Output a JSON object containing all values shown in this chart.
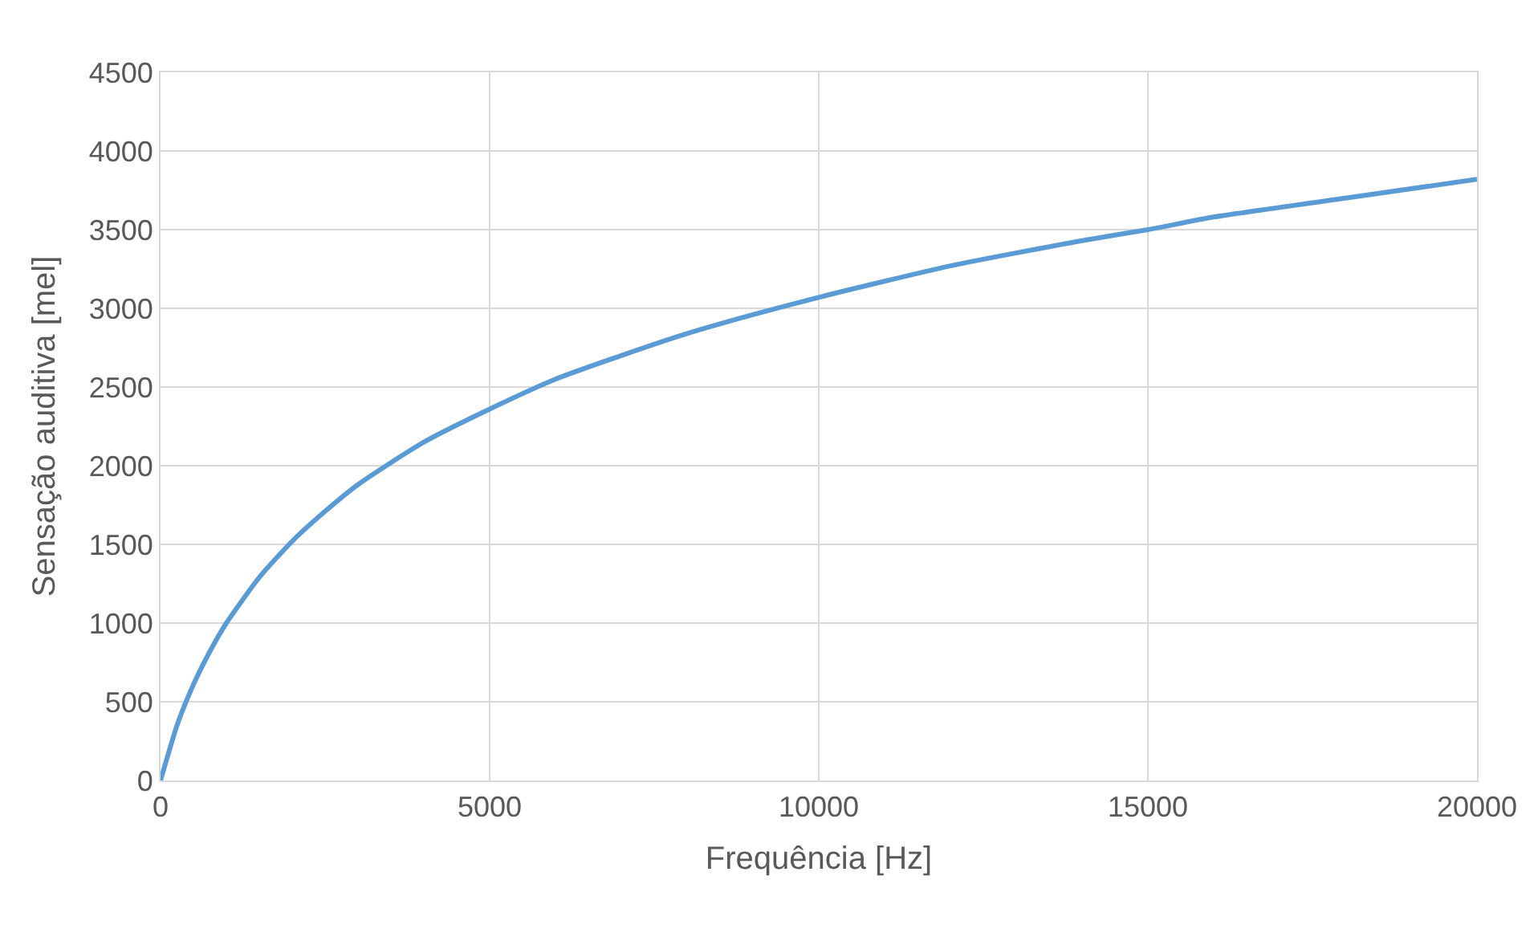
{
  "chart_data": {
    "type": "line",
    "xlabel": "Frequência [Hz]",
    "ylabel": "Sensação auditiva [mel]",
    "x": [
      0,
      250,
      500,
      750,
      1000,
      1500,
      2000,
      2500,
      3000,
      4000,
      5000,
      6000,
      7000,
      8000,
      9000,
      10000,
      12000,
      14000,
      15000,
      16000,
      18000,
      20000
    ],
    "series": [
      {
        "color": "#5b9bd5",
        "values": [
          0,
          350,
          610,
          820,
          1000,
          1290,
          1520,
          1710,
          1880,
          2150,
          2360,
          2550,
          2700,
          2840,
          2960,
          3070,
          3270,
          3430,
          3500,
          3580,
          3700,
          3820
        ]
      }
    ],
    "xlim": [
      0,
      20000
    ],
    "xticks": [
      0,
      5000,
      10000,
      15000,
      20000
    ],
    "ylim": [
      0,
      4500
    ],
    "yticks": [
      0,
      500,
      1000,
      1500,
      2000,
      2500,
      3000,
      3500,
      4000,
      4500
    ],
    "grid": true,
    "legend": false,
    "marker": "none",
    "line_style": "solid"
  }
}
